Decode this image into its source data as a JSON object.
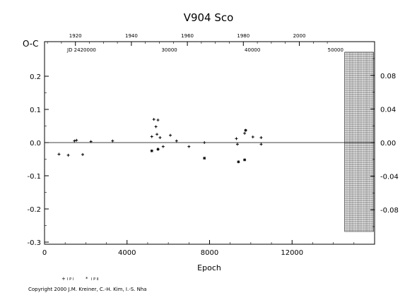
{
  "chart_data": {
    "type": "scatter",
    "title": "V904 Sco",
    "ylabel": "O-C",
    "xlabel": "Epoch",
    "xlim": [
      0,
      16000
    ],
    "ylim": [
      -0.3,
      0.25
    ],
    "x_ticks": [
      "0",
      "4000",
      "8000",
      "12000"
    ],
    "y_ticks": [
      "0.2",
      "0.1",
      "0.0",
      "-0.1",
      "-0.2",
      "-0.3"
    ],
    "top_axis_years": [
      "1920",
      "1940",
      "1960",
      "1980",
      "2000"
    ],
    "top_axis_jd_label": "JD 2420000",
    "top_axis_jd_ticks": [
      "30000",
      "40000",
      "50000"
    ],
    "right_axis_ticks": [
      "0.08",
      "0.04",
      "0.00",
      "-0.04",
      "-0.08"
    ],
    "grid": false,
    "hatched_region_x": [
      14550,
      15950
    ],
    "series": [
      {
        "name": "I P I",
        "values": [
          {
            "x": 700,
            "y": -0.035
          },
          {
            "x": 1150,
            "y": -0.038
          },
          {
            "x": 1450,
            "y": 0.005
          },
          {
            "x": 1550,
            "y": 0.007
          },
          {
            "x": 1850,
            "y": -0.036
          },
          {
            "x": 2250,
            "y": 0.003
          },
          {
            "x": 3300,
            "y": 0.005
          },
          {
            "x": 5200,
            "y": 0.018
          },
          {
            "x": 5300,
            "y": 0.07
          },
          {
            "x": 5400,
            "y": 0.048
          },
          {
            "x": 5500,
            "y": 0.068
          },
          {
            "x": 5450,
            "y": 0.025
          },
          {
            "x": 5600,
            "y": 0.015
          },
          {
            "x": 5750,
            "y": -0.012
          },
          {
            "x": 6100,
            "y": 0.022
          },
          {
            "x": 6400,
            "y": 0.005
          },
          {
            "x": 7000,
            "y": -0.012
          },
          {
            "x": 7750,
            "y": 0.0
          },
          {
            "x": 9300,
            "y": 0.012
          },
          {
            "x": 9350,
            "y": -0.005
          },
          {
            "x": 9700,
            "y": 0.028
          },
          {
            "x": 10100,
            "y": 0.017
          },
          {
            "x": 10500,
            "y": 0.015
          },
          {
            "x": 10500,
            "y": -0.005
          }
        ]
      },
      {
        "name": "I P II",
        "values": [
          {
            "x": 5200,
            "y": -0.025
          },
          {
            "x": 5500,
            "y": -0.02
          },
          {
            "x": 7750,
            "y": -0.047
          },
          {
            "x": 9400,
            "y": -0.058
          },
          {
            "x": 9700,
            "y": -0.052
          },
          {
            "x": 9750,
            "y": 0.037
          }
        ]
      }
    ]
  },
  "legend": {
    "items": [
      {
        "symbol": "+",
        "label": "I P I"
      },
      {
        "symbol": "*",
        "label": "I P II"
      }
    ]
  },
  "copyright": "Copyright 2000 J.M. Kreiner, C.-H. Kim, I.-S. Nha"
}
